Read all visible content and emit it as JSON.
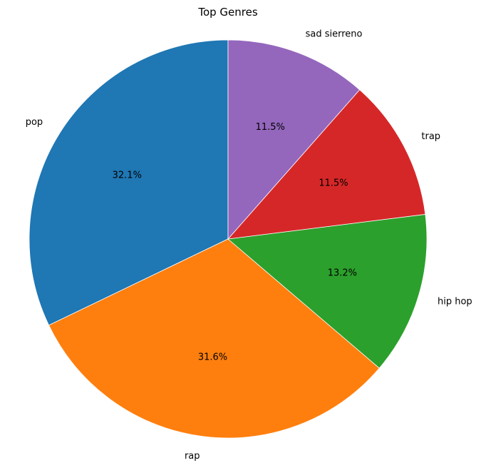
{
  "chart_data": {
    "type": "pie",
    "title": "Top Genres",
    "start_angle_deg": 90,
    "direction": "counterclockwise",
    "slices": [
      {
        "label": "pop",
        "value": 32.1,
        "pct_text": "32.1%",
        "color": "#1f77b4"
      },
      {
        "label": "rap",
        "value": 31.6,
        "pct_text": "31.6%",
        "color": "#ff7f0e"
      },
      {
        "label": "hip hop",
        "value": 13.2,
        "pct_text": "13.2%",
        "color": "#2ca02c"
      },
      {
        "label": "trap",
        "value": 11.5,
        "pct_text": "11.5%",
        "color": "#d62728"
      },
      {
        "label": "sad sierreno",
        "value": 11.5,
        "pct_text": "11.5%",
        "color": "#9467bd"
      }
    ]
  }
}
